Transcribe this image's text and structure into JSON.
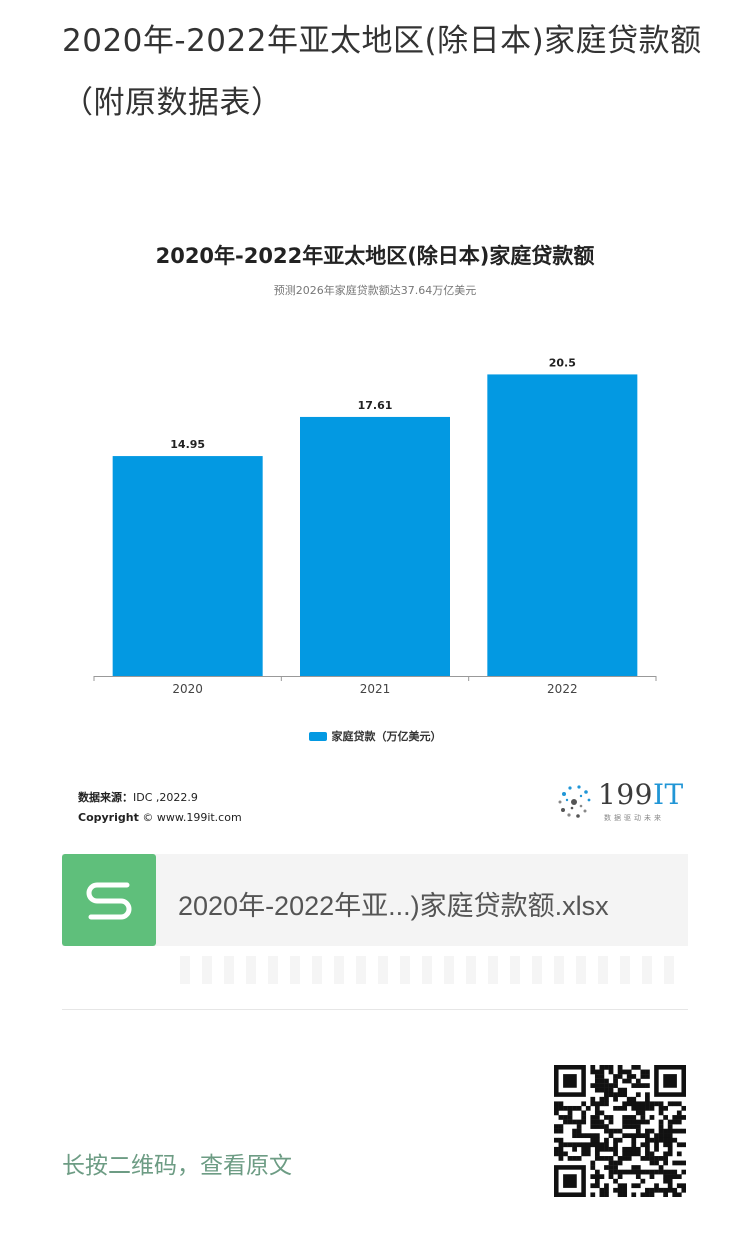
{
  "article": {
    "title": "2020年-2022年亚太地区(除日本)家庭贷款额（附原数据表）"
  },
  "chart_data": {
    "type": "bar",
    "title": "2020年-2022年亚太地区(除日本)家庭贷款额",
    "subtitle": "预测2026年家庭贷款额达37.64万亿美元",
    "categories": [
      "2020",
      "2021",
      "2022"
    ],
    "series": [
      {
        "name": "家庭贷款（万亿美元）",
        "values": [
          14.95,
          17.61,
          20.5
        ]
      }
    ],
    "value_labels": [
      "14.95",
      "17.61",
      "20.5"
    ],
    "ylim": [
      0,
      22.5
    ],
    "grid": false,
    "legend_position": "bottom-center",
    "colors": {
      "bar": "#0399e2"
    }
  },
  "source": {
    "label": "数据来源：",
    "value": "IDC ,2022.9",
    "copyright_label": "Copyright",
    "copyright_value": "© www.199it.com"
  },
  "logo": {
    "text_num": "199",
    "text_it": "IT",
    "slogan": "数据驱动未来",
    "icon": "dandelion-dots-icon"
  },
  "attachment": {
    "icon": "spreadsheet-s-icon",
    "filename": "2020年-2022年亚...)家庭贷款额.xlsx",
    "icon_color": "#5fbf7b"
  },
  "footer": {
    "cta": "长按二维码，查看原文",
    "qr_icon": "qr-code-icon",
    "cta_color": "#6d9c84"
  }
}
